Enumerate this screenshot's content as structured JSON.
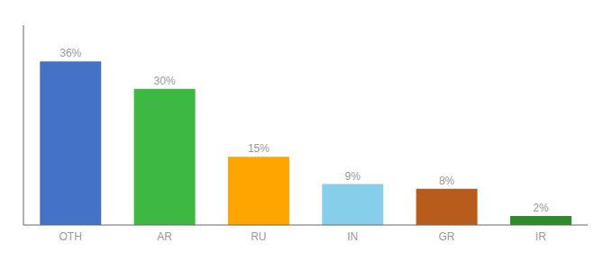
{
  "chart_data": {
    "type": "bar",
    "categories": [
      "OTH",
      "AR",
      "RU",
      "IN",
      "GR",
      "IR"
    ],
    "values": [
      36,
      30,
      15,
      9,
      8,
      2
    ],
    "value_labels": [
      "36%",
      "30%",
      "15%",
      "9%",
      "8%",
      "2%"
    ],
    "colors": [
      "#4472C4",
      "#3CB843",
      "#FFA500",
      "#87CEEB",
      "#B85C1E",
      "#2D8A2D"
    ],
    "ylim": [
      0,
      44
    ],
    "data_labels": true,
    "tick_labels": "x",
    "grid": false
  }
}
